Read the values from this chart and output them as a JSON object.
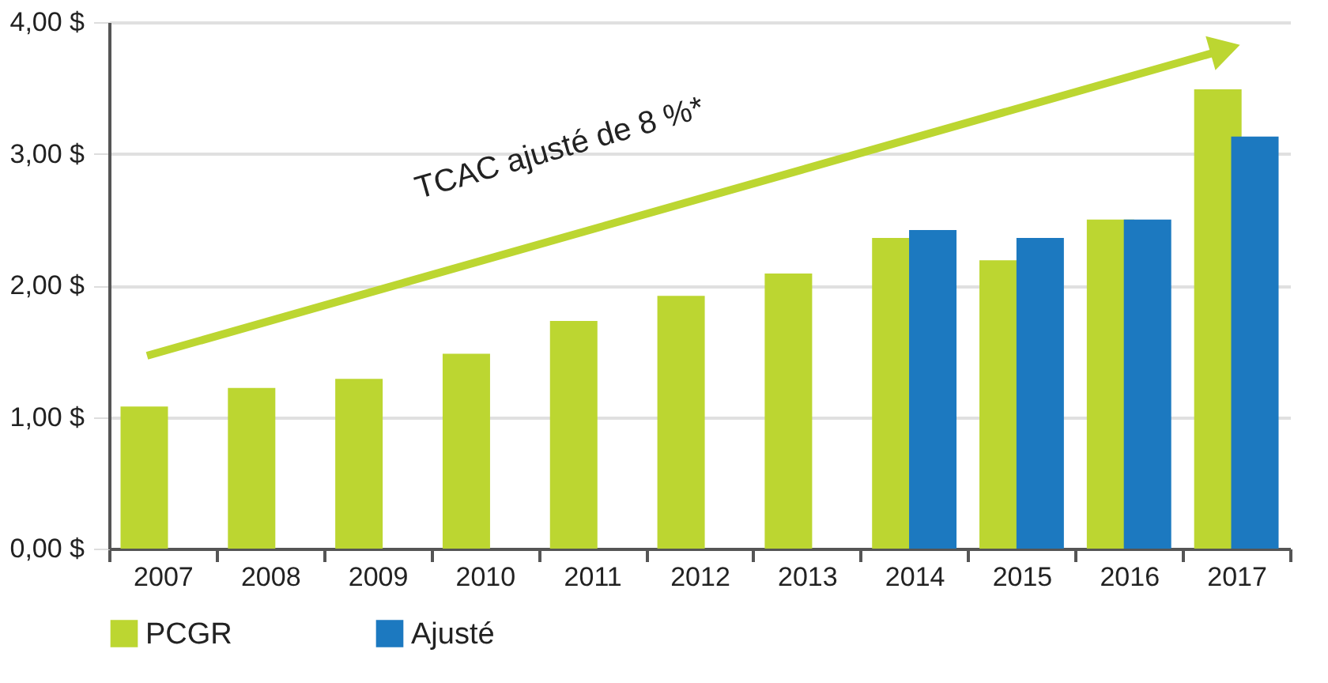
{
  "chart_data": {
    "type": "bar",
    "categories": [
      "2007",
      "2008",
      "2009",
      "2010",
      "2011",
      "2012",
      "2013",
      "2014",
      "2015",
      "2016",
      "2017"
    ],
    "series": [
      {
        "name": "PCGR",
        "color": "#bcd631",
        "values": [
          1.08,
          1.22,
          1.29,
          1.48,
          1.73,
          1.92,
          2.09,
          2.36,
          2.19,
          2.5,
          3.49
        ]
      },
      {
        "name": "Ajusté",
        "color": "#1c79c0",
        "values": [
          null,
          null,
          null,
          null,
          null,
          null,
          null,
          2.42,
          2.36,
          2.5,
          3.13
        ]
      }
    ],
    "ylim": [
      0,
      4
    ],
    "yticks": [
      {
        "value": 0,
        "label": "0,00 $"
      },
      {
        "value": 1,
        "label": "1,00 $"
      },
      {
        "value": 2,
        "label": "2,00 $"
      },
      {
        "value": 3,
        "label": "3,00 $"
      },
      {
        "value": 4,
        "label": "4,00 $"
      }
    ],
    "annotations": [
      "TCAC ajusté de 8 %*"
    ],
    "grid": "y",
    "legend": "bottom"
  }
}
